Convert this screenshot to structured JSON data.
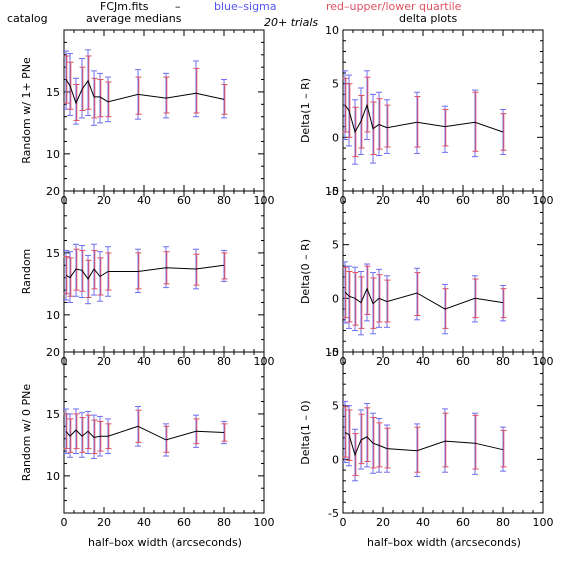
{
  "header": {
    "catalog": "catalog",
    "file": "FCJm.fits",
    "dash": "–",
    "blue_label": "blue–sigma",
    "red_label": "red–upper/lower quartile",
    "left_title": "average medians",
    "trials": "20+ trials",
    "right_title": "delta plots"
  },
  "colors": {
    "sigma": "#6f6ff0",
    "quartile": "#e05060",
    "line": "#000000"
  },
  "xlabel": "half–box width (arcseconds)",
  "chart_data": [
    {
      "type": "line",
      "ylabel": "Random w/ 1+ PNe",
      "xlim": [
        0,
        100
      ],
      "ylim": [
        7,
        20
      ],
      "xticks": [
        0,
        20,
        40,
        60,
        80,
        100
      ],
      "yticks": [
        10,
        15
      ],
      "x": [
        1,
        3,
        6,
        9,
        12,
        15,
        18,
        22,
        37,
        51,
        66,
        80
      ],
      "y": [
        16.0,
        15.5,
        14.1,
        15.2,
        15.9,
        14.6,
        14.6,
        14.2,
        14.8,
        14.5,
        14.9,
        14.4
      ],
      "sigma_lo": [
        13.6,
        13.1,
        12.4,
        12.9,
        13.1,
        12.3,
        12.5,
        12.6,
        12.8,
        12.9,
        13.0,
        12.9
      ],
      "sigma_hi": [
        18.3,
        18.1,
        16.1,
        17.7,
        18.4,
        16.7,
        16.5,
        16.2,
        16.8,
        16.5,
        17.5,
        16.0
      ],
      "q_lo": [
        14.1,
        13.6,
        12.7,
        13.5,
        13.6,
        12.9,
        13.0,
        13.0,
        13.2,
        13.3,
        13.3,
        13.2
      ],
      "q_hi": [
        17.9,
        17.4,
        15.6,
        17.0,
        17.9,
        16.1,
        16.0,
        15.8,
        16.2,
        16.2,
        16.9,
        15.6
      ]
    },
    {
      "type": "line",
      "ylabel": "Delta(1 – R)",
      "xlim": [
        0,
        100
      ],
      "ylim": [
        -5,
        10
      ],
      "xticks": [
        0,
        20,
        40,
        60,
        80,
        100
      ],
      "yticks": [
        -5,
        0,
        5,
        10
      ],
      "x": [
        1,
        3,
        6,
        9,
        12,
        15,
        18,
        22,
        37,
        51,
        66,
        80
      ],
      "y": [
        3.0,
        2.5,
        0.5,
        1.5,
        3.0,
        0.8,
        1.2,
        0.9,
        1.4,
        1.0,
        1.4,
        0.5
      ],
      "sigma_lo": [
        -0.2,
        -0.8,
        -2.5,
        -1.6,
        -0.2,
        -2.4,
        -1.7,
        -1.5,
        -1.5,
        -1.4,
        -1.8,
        -1.6
      ],
      "sigma_hi": [
        6.2,
        5.8,
        3.5,
        4.6,
        6.2,
        4.0,
        4.2,
        3.5,
        4.2,
        2.9,
        4.4,
        2.6
      ],
      "q_lo": [
        0.5,
        0.0,
        -1.8,
        -1.0,
        0.5,
        -1.6,
        -1.1,
        -0.9,
        -0.9,
        -0.8,
        -1.3,
        -1.2
      ],
      "q_hi": [
        5.5,
        5.0,
        2.8,
        3.9,
        5.6,
        3.3,
        3.6,
        3.0,
        3.8,
        2.6,
        4.2,
        2.2
      ]
    },
    {
      "type": "line",
      "ylabel": "Random",
      "xlim": [
        0,
        100
      ],
      "ylim": [
        7,
        20
      ],
      "xticks": [
        0,
        20,
        40,
        60,
        80,
        100
      ],
      "yticks": [
        10,
        15,
        20
      ],
      "x": [
        1,
        3,
        6,
        9,
        12,
        15,
        18,
        22,
        37,
        51,
        66,
        80
      ],
      "y": [
        13.2,
        13.0,
        13.7,
        13.6,
        12.9,
        13.7,
        13.1,
        13.5,
        13.5,
        13.8,
        13.7,
        14.0
      ],
      "sigma_lo": [
        11.2,
        11.0,
        11.5,
        11.4,
        10.9,
        11.6,
        11.1,
        11.5,
        11.8,
        12.2,
        12.1,
        12.7
      ],
      "sigma_hi": [
        15.2,
        15.1,
        15.7,
        15.6,
        14.8,
        15.7,
        15.1,
        15.5,
        15.3,
        15.5,
        15.3,
        15.2
      ],
      "q_lo": [
        11.7,
        11.5,
        12.0,
        11.9,
        11.4,
        12.1,
        11.6,
        12.0,
        12.1,
        12.5,
        12.4,
        12.9
      ],
      "q_hi": [
        14.7,
        14.6,
        15.3,
        15.2,
        14.4,
        15.2,
        14.6,
        15.0,
        15.0,
        15.1,
        14.9,
        15.0
      ]
    },
    {
      "type": "line",
      "ylabel": "Delta(0 – R)",
      "xlim": [
        0,
        100
      ],
      "ylim": [
        -5,
        10
      ],
      "xticks": [
        0,
        20,
        40,
        60,
        80,
        100
      ],
      "yticks": [
        -5,
        0,
        5,
        10
      ],
      "x": [
        1,
        3,
        6,
        9,
        12,
        15,
        18,
        22,
        37,
        51,
        66,
        80
      ],
      "y": [
        0.6,
        0.2,
        0.0,
        -0.4,
        0.9,
        -0.5,
        0.0,
        -0.3,
        0.5,
        -1.0,
        0.0,
        -0.4
      ],
      "sigma_lo": [
        -2.3,
        -2.8,
        -3.0,
        -3.4,
        -2.1,
        -3.3,
        -2.7,
        -2.7,
        -2.0,
        -3.3,
        -2.2,
        -2.1
      ],
      "sigma_hi": [
        3.4,
        3.0,
        2.9,
        2.5,
        3.2,
        2.4,
        2.7,
        2.1,
        2.8,
        1.3,
        2.1,
        1.2
      ],
      "q_lo": [
        -1.8,
        -2.2,
        -2.5,
        -2.8,
        -1.5,
        -2.8,
        -2.2,
        -2.2,
        -1.6,
        -2.8,
        -1.8,
        -1.8
      ],
      "q_hi": [
        2.9,
        2.5,
        2.4,
        2.0,
        3.0,
        1.9,
        2.2,
        1.7,
        2.4,
        0.9,
        1.8,
        0.9
      ]
    },
    {
      "type": "line",
      "ylabel": "Random w/ 0 PNe",
      "xlim": [
        0,
        100
      ],
      "ylim": [
        7,
        20
      ],
      "xticks": [
        0,
        20,
        40,
        60,
        80,
        100
      ],
      "yticks": [
        10,
        15,
        20
      ],
      "x": [
        1,
        3,
        6,
        9,
        12,
        15,
        18,
        22,
        37,
        51,
        66,
        80
      ],
      "y": [
        13.6,
        13.2,
        13.7,
        13.2,
        13.6,
        13.1,
        13.2,
        13.2,
        14.0,
        12.9,
        13.6,
        13.5
      ],
      "sigma_lo": [
        11.8,
        11.5,
        11.8,
        11.5,
        11.8,
        11.4,
        11.6,
        11.8,
        12.4,
        11.6,
        12.3,
        12.6
      ],
      "sigma_hi": [
        15.4,
        15.0,
        15.4,
        15.1,
        15.2,
        14.9,
        14.8,
        14.6,
        15.6,
        14.2,
        14.9,
        14.4
      ],
      "q_lo": [
        12.2,
        11.9,
        12.2,
        11.9,
        12.2,
        11.8,
        12.0,
        12.2,
        12.7,
        11.9,
        12.6,
        12.8
      ],
      "q_hi": [
        15.0,
        14.6,
        15.0,
        14.7,
        14.9,
        14.5,
        14.4,
        14.2,
        15.3,
        14.0,
        14.6,
        14.2
      ]
    },
    {
      "type": "line",
      "ylabel": "Delta(1 – 0)",
      "xlim": [
        0,
        100
      ],
      "ylim": [
        -5,
        10
      ],
      "xticks": [
        0,
        20,
        40,
        60,
        80,
        100
      ],
      "yticks": [
        -5,
        0,
        5,
        10
      ],
      "x": [
        1,
        3,
        6,
        9,
        12,
        15,
        18,
        22,
        37,
        51,
        66,
        80
      ],
      "y": [
        2.5,
        2.3,
        0.4,
        1.8,
        2.1,
        1.5,
        1.3,
        1.0,
        0.8,
        1.7,
        1.5,
        0.9
      ],
      "sigma_lo": [
        -0.3,
        -0.6,
        -2.0,
        -0.9,
        -0.7,
        -1.3,
        -1.2,
        -1.2,
        -1.6,
        -1.2,
        -1.4,
        -1.1
      ],
      "sigma_hi": [
        5.4,
        5.0,
        2.8,
        4.6,
        5.2,
        4.3,
        3.8,
        3.2,
        3.3,
        4.7,
        4.3,
        3.0
      ],
      "q_lo": [
        0.2,
        -0.1,
        -1.5,
        -0.4,
        -0.2,
        -0.8,
        -0.7,
        -0.8,
        -1.2,
        -0.7,
        -0.9,
        -0.7
      ],
      "q_hi": [
        4.9,
        4.6,
        2.4,
        4.2,
        4.8,
        3.9,
        3.4,
        2.9,
        3.0,
        4.3,
        4.1,
        2.7
      ]
    }
  ]
}
